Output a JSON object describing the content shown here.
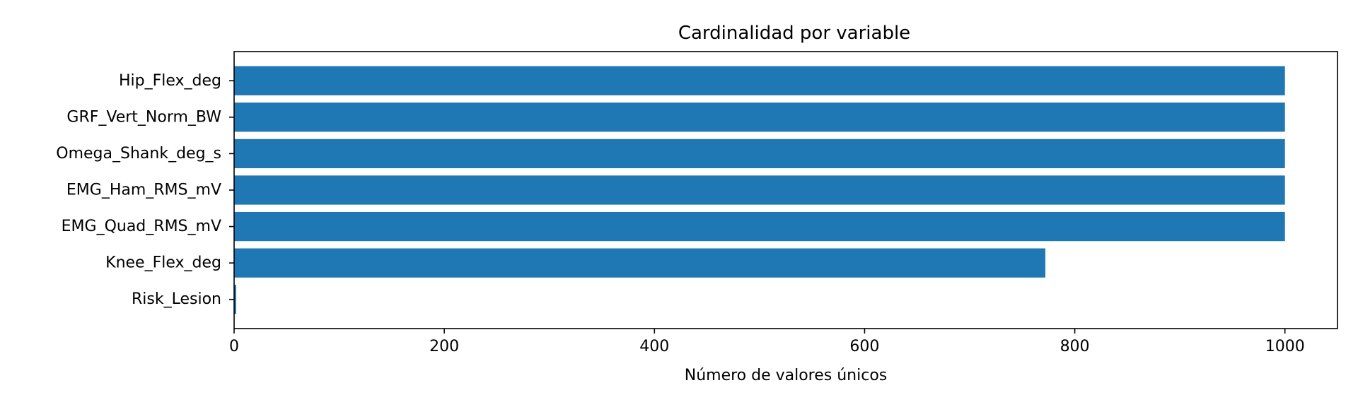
{
  "chart_data": {
    "type": "bar",
    "orientation": "horizontal",
    "title": "Cardinalidad por variable",
    "xlabel": "Número de valores únicos",
    "ylabel": "",
    "categories": [
      "Hip_Flex_deg",
      "GRF_Vert_Norm_BW",
      "Omega_Shank_deg_s",
      "EMG_Ham_RMS_mV",
      "EMG_Quad_RMS_mV",
      "Knee_Flex_deg",
      "Risk_Lesion"
    ],
    "values": [
      1000,
      1000,
      1000,
      1000,
      1000,
      772,
      2
    ],
    "xlim": [
      0,
      1050
    ],
    "xticks": [
      0,
      200,
      400,
      600,
      800,
      1000
    ],
    "bar_color": "#1f77b4",
    "grid": false,
    "legend": "none"
  }
}
